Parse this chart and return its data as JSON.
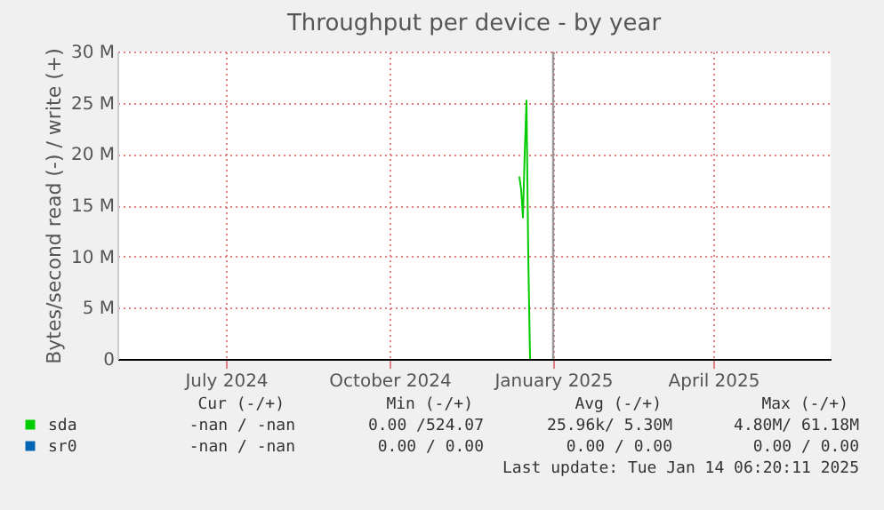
{
  "chart_data": {
    "type": "line",
    "title": "Throughput per device - by year",
    "ylabel": "Bytes/second read (-) / write (+)",
    "xlim": [
      "2024-05-01",
      "2025-06-06"
    ],
    "xticks": [
      {
        "value": "2024-07-01",
        "label": "July 2024"
      },
      {
        "value": "2024-10-01",
        "label": "October 2024"
      },
      {
        "value": "2025-01-01",
        "label": "January 2025"
      },
      {
        "value": "2025-04-01",
        "label": "April 2025"
      }
    ],
    "ylim": [
      0,
      30000000
    ],
    "yticks": [
      0,
      {
        "value": 5000000,
        "label": "5 M"
      },
      {
        "value": 10000000,
        "label": "10 M"
      },
      {
        "value": 15000000,
        "label": "15 M"
      },
      {
        "value": 20000000,
        "label": "20 M"
      },
      {
        "value": 25000000,
        "label": "25 M"
      },
      {
        "value": 30000000,
        "label": "30 M"
      }
    ],
    "grid": true,
    "legend": "bottom",
    "marker": "none",
    "line_style": "solid",
    "x": [
      "2024-12-13",
      "2024-12-14",
      "2024-12-15",
      "2024-12-16",
      "2024-12-17",
      "2024-12-18",
      "2024-12-19"
    ],
    "series": [
      {
        "name": "sda",
        "color": "#00cc00",
        "values": [
          17800000,
          16500000,
          13800000,
          20000000,
          25200000,
          10000000,
          0
        ]
      },
      {
        "name": "sr0",
        "color": "#0066b3",
        "values": [
          null,
          null,
          null,
          null,
          null,
          null,
          null
        ]
      }
    ],
    "ref_lines": [
      {
        "axis": "x",
        "value": "2025-01-01",
        "color": "#999999"
      }
    ],
    "annotations": [
      "Cur (-/+)",
      "Min (-/+)",
      "Avg (-/+)",
      "Max (-/+)",
      "-nan /  -nan",
      "0.00 /524.07",
      "25.96k/  5.30M",
      "4.80M/ 61.18M",
      "-nan /  -nan",
      "0.00 /  0.00",
      "0.00 /  0.00",
      "0.00 /  0.00",
      "Last update: Tue Jan 14 06:20:11 2025"
    ]
  }
}
